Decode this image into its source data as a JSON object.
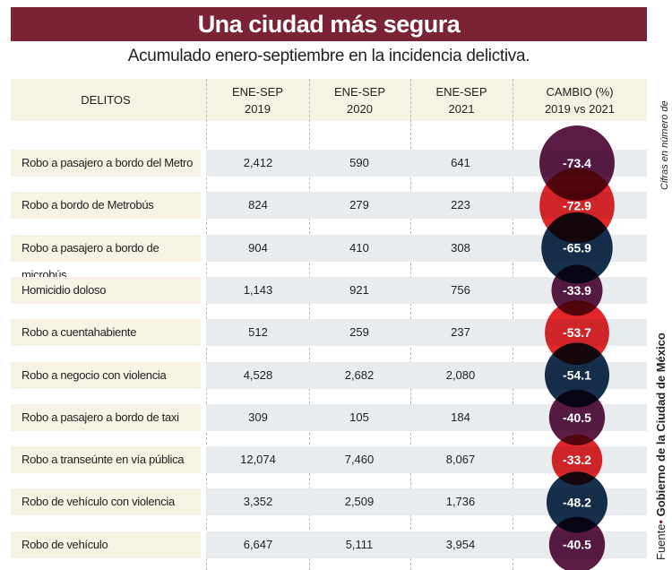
{
  "title": "Una ciudad más segura",
  "subtitle": "Acumulado enero-septiembre en la incidencia delictiva.",
  "side_note": "Cifras en número de casos",
  "source_label": "Fuente",
  "source": "Gobierno de la Ciudad de México",
  "colors": {
    "title_bg": "#7a2334",
    "purple": "#5c1c45",
    "red": "#e3262a",
    "navy": "#16304d"
  },
  "chart_data": {
    "type": "table",
    "headers": [
      {
        "l1": "DELITOS",
        "l2": ""
      },
      {
        "l1": "ENE-SEP",
        "l2": "2019"
      },
      {
        "l1": "ENE-SEP",
        "l2": "2020"
      },
      {
        "l1": "ENE-SEP",
        "l2": "2021"
      },
      {
        "l1": "CAMBIO (%)",
        "l2": "2019 vs 2021"
      }
    ],
    "rows": [
      {
        "delito": "Robo a pasajero a bordo del Metro",
        "y2019": "2,412",
        "y2020": "590",
        "y2021": "641",
        "cambio": "-73.4",
        "color": "#5c1c45"
      },
      {
        "delito": "Robo a bordo de Metrobús",
        "y2019": "824",
        "y2020": "279",
        "y2021": "223",
        "cambio": "-72.9",
        "color": "#e3262a"
      },
      {
        "delito": "Robo a pasajero a bordo de microbús",
        "y2019": "904",
        "y2020": "410",
        "y2021": "308",
        "cambio": "-65.9",
        "color": "#16304d"
      },
      {
        "delito": "Homicidio doloso",
        "y2019": "1,143",
        "y2020": "921",
        "y2021": "756",
        "cambio": "-33.9",
        "color": "#5c1c45"
      },
      {
        "delito": "Robo a cuentahabiente",
        "y2019": "512",
        "y2020": "259",
        "y2021": "237",
        "cambio": "-53.7",
        "color": "#e3262a"
      },
      {
        "delito": "Robo a negocio con violencia",
        "y2019": "4,528",
        "y2020": "2,682",
        "y2021": "2,080",
        "cambio": "-54.1",
        "color": "#16304d"
      },
      {
        "delito": "Robo a pasajero a bordo de taxi",
        "y2019": "309",
        "y2020": "105",
        "y2021": "184",
        "cambio": "-40.5",
        "color": "#5c1c45"
      },
      {
        "delito": "Robo a transeúnte en vía pública",
        "y2019": "12,074",
        "y2020": "7,460",
        "y2021": "8,067",
        "cambio": "-33.2",
        "color": "#e3262a"
      },
      {
        "delito": "Robo de vehículo con violencia",
        "y2019": "3,352",
        "y2020": "2,509",
        "y2021": "1,736",
        "cambio": "-48.2",
        "color": "#16304d"
      },
      {
        "delito": "Robo de vehículo",
        "y2019": "6,647",
        "y2020": "5,111",
        "y2021": "3,954",
        "cambio": "-40.5",
        "color": "#5c1c45"
      }
    ]
  }
}
